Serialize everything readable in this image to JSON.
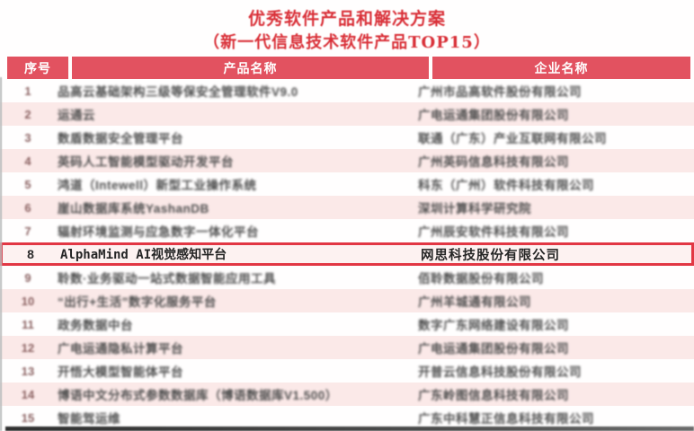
{
  "title": "优秀软件产品和解决方案",
  "subtitle": "（新一代信息技术软件产品TOP15）",
  "table": {
    "headers": [
      "序号",
      "产品名称",
      "企业名称"
    ],
    "rows": [
      {
        "no": "1",
        "product": "品高云基础架构三级等保安全管理软件V9.0",
        "company": "广州市品高软件股份有限公司",
        "highlighted": false
      },
      {
        "no": "2",
        "product": "运通云",
        "company": "广电运通集团股份有限公司",
        "highlighted": false
      },
      {
        "no": "3",
        "product": "数盾数据安全管理平台",
        "company": "联通（广东）产业互联网有限公司",
        "highlighted": false
      },
      {
        "no": "4",
        "product": "英码人工智能模型驱动开发平台",
        "company": "广州英码信息科技有限公司",
        "highlighted": false
      },
      {
        "no": "5",
        "product": "鸿道（Intewell）新型工业操作系统",
        "company": "科东（广州）软件科技有限公司",
        "highlighted": false
      },
      {
        "no": "6",
        "product": "崖山数据库系统YashanDB",
        "company": "深圳计算科学研究院",
        "highlighted": false
      },
      {
        "no": "7",
        "product": "辐射环境监测与应急数字一体化平台",
        "company": "广州辰安软件科技有限公司",
        "highlighted": false
      },
      {
        "no": "8",
        "product": "AlphaMind AI视觉感知平台",
        "company": "网思科技股份有限公司",
        "highlighted": true
      },
      {
        "no": "9",
        "product": "聆数·业务驱动一站式数据智能应用工具",
        "company": "佰聆数据股份有限公司",
        "highlighted": false
      },
      {
        "no": "10",
        "product": "“出行+生活”数字化服务平台",
        "company": "广州羊城通有限公司",
        "highlighted": false
      },
      {
        "no": "11",
        "product": "政务数据中台",
        "company": "数字广东网络建设有限公司",
        "highlighted": false
      },
      {
        "no": "12",
        "product": "广电运通隐私计算平台",
        "company": "广电运通集团股份有限公司",
        "highlighted": false
      },
      {
        "no": "13",
        "product": "开悟大模型智能体平台",
        "company": "开普云信息科技股份有限公司",
        "highlighted": false
      },
      {
        "no": "14",
        "product": "博语中文分布式参数数据库（博语数据库V1.500）",
        "company": "广东岭图信息科技有限公司",
        "highlighted": false
      },
      {
        "no": "15",
        "product": "智能驾运维",
        "company": "广东中科慧正信息科技有限公司",
        "highlighted": false
      }
    ]
  },
  "colors": {
    "title_red": "#d93038",
    "header_bg": "#e25260",
    "stripe_pink": "#fbe9e8",
    "highlight_border": "#e23744",
    "highlight_bg": "#fdf2f1"
  }
}
